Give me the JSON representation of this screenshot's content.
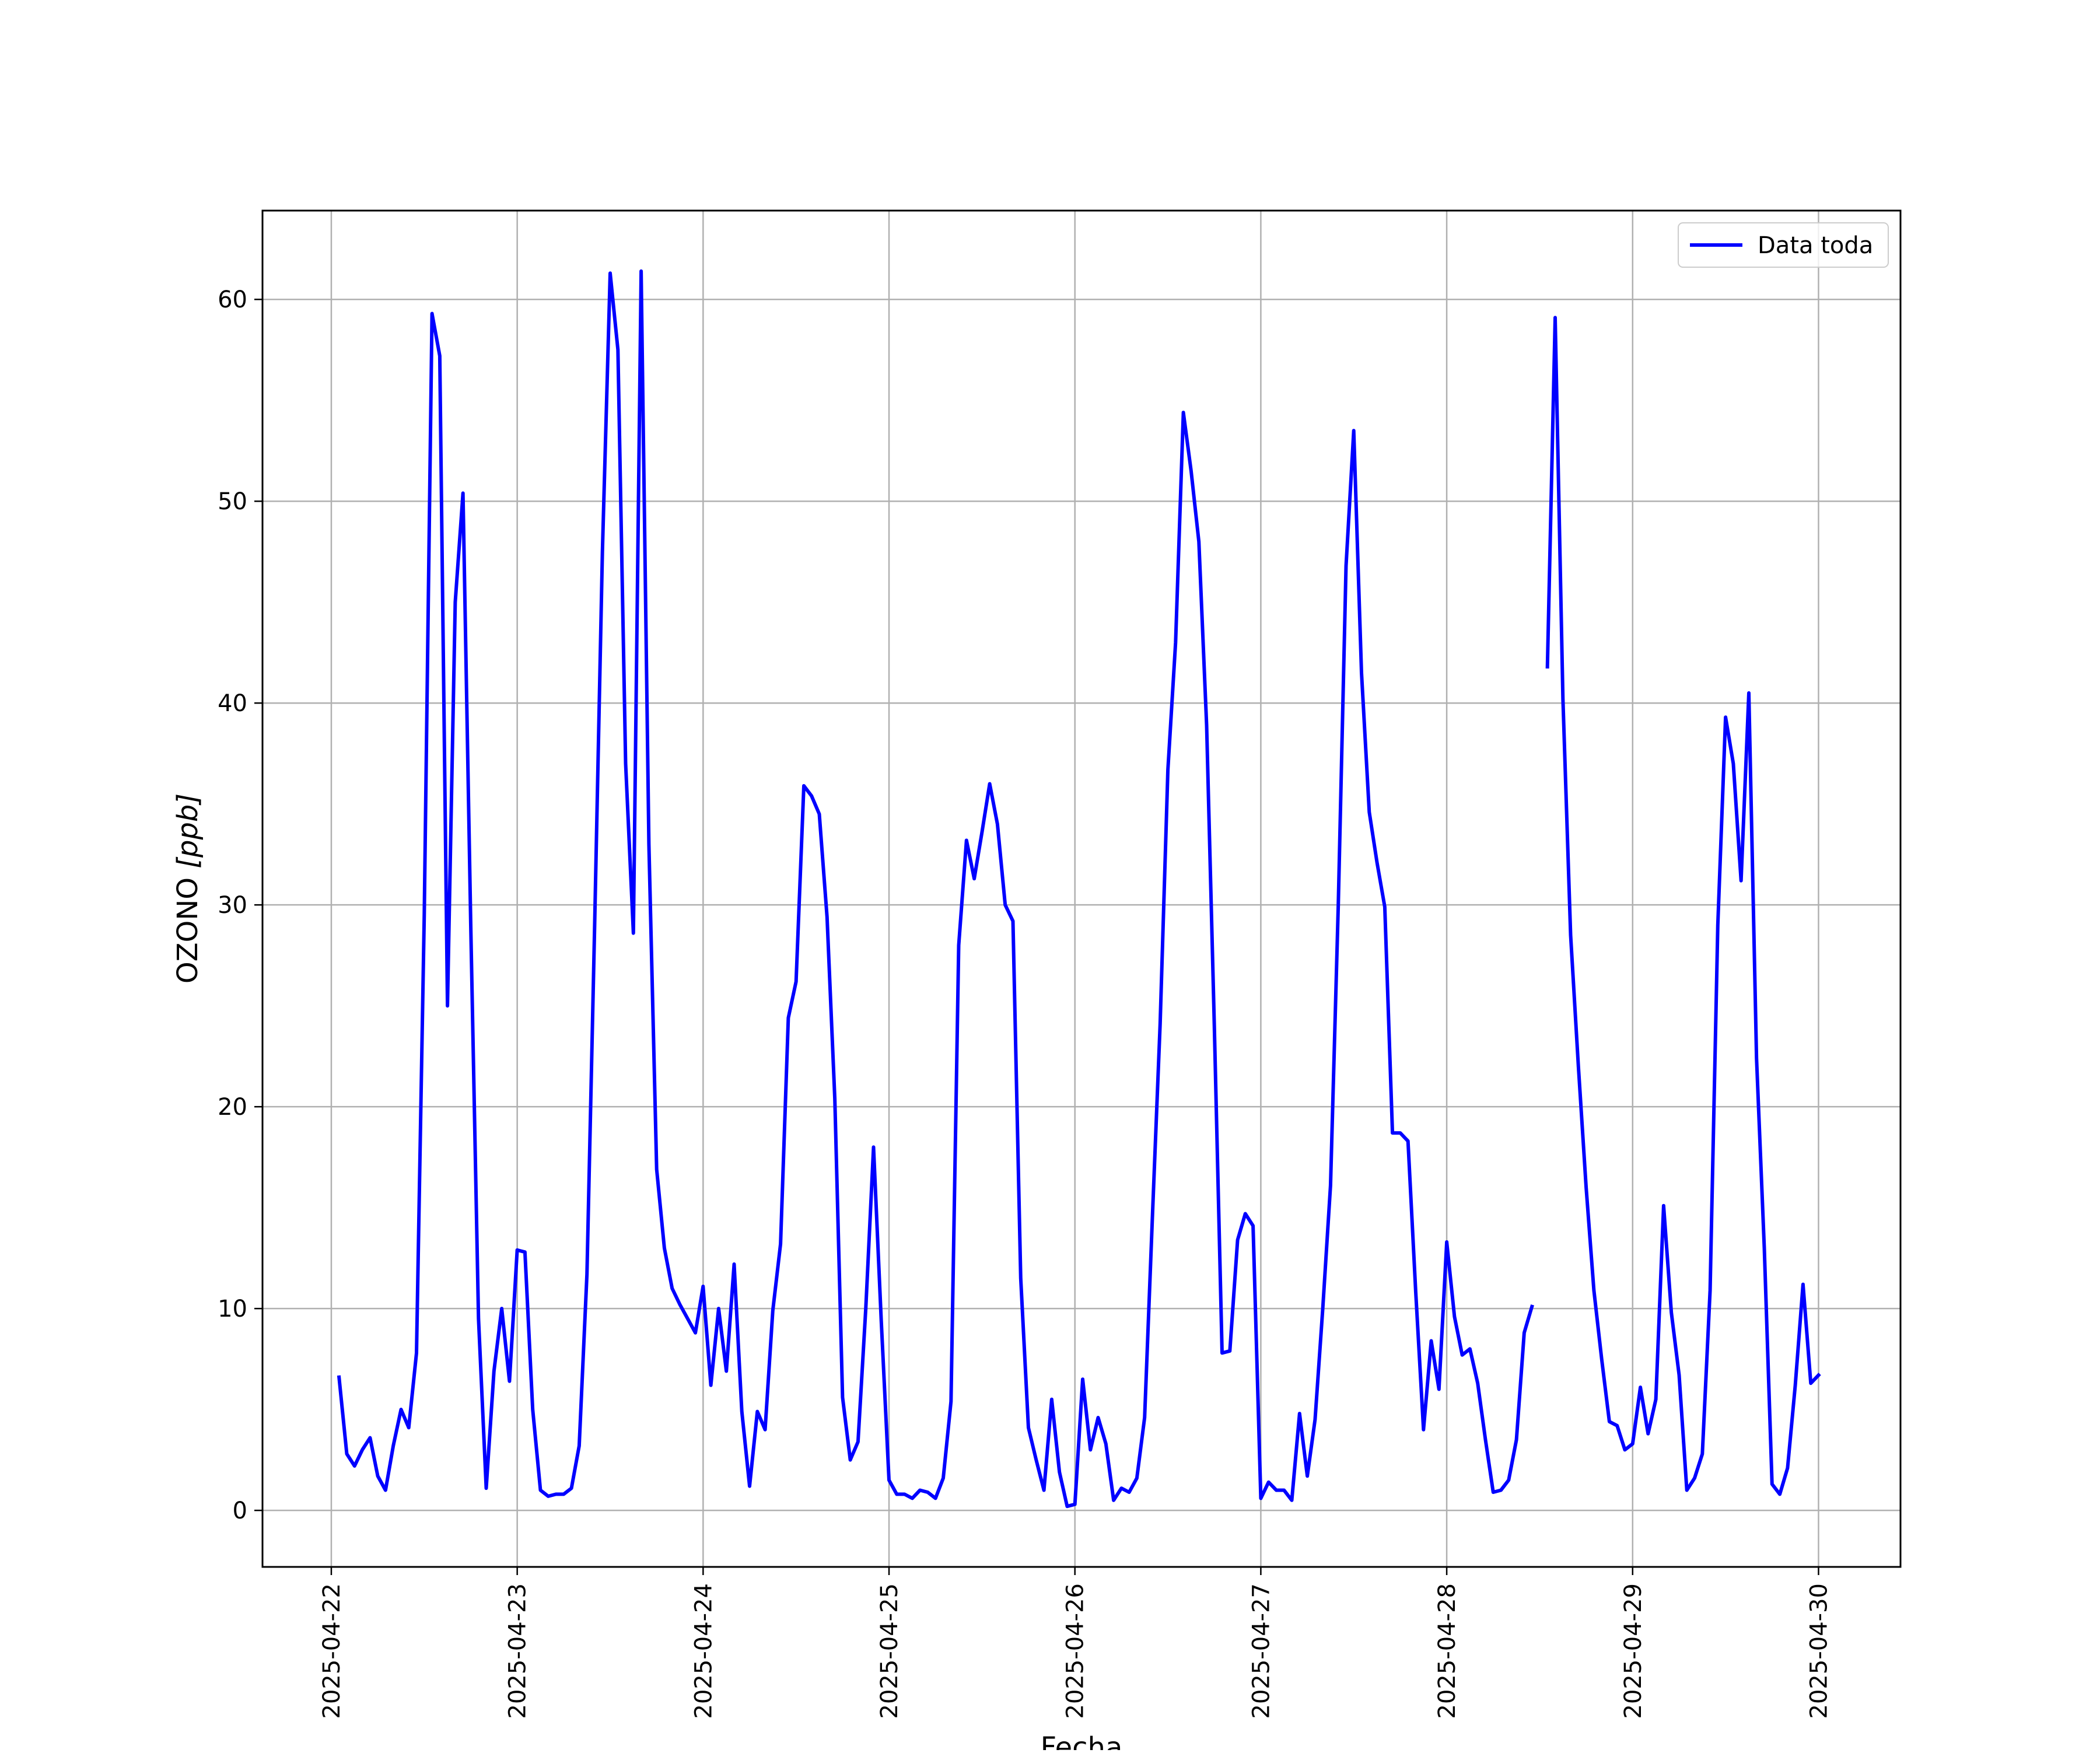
{
  "chart_data": {
    "type": "line",
    "xlabel": "Fecha",
    "ylabel": "OZONO [ppb]",
    "ylabel_main": "OZONO ",
    "ylabel_unit": "[ppb]",
    "legend": {
      "position": "top-right",
      "entries": [
        "Data toda"
      ]
    },
    "grid": true,
    "xlim": [
      "2025-04-21T15:07",
      "2025-04-30T10:35"
    ],
    "ylim": [
      -2.8,
      64.4
    ],
    "x_ticks": [
      "2025-04-22",
      "2025-04-23",
      "2025-04-24",
      "2025-04-25",
      "2025-04-26",
      "2025-04-27",
      "2025-04-28",
      "2025-04-29",
      "2025-04-30"
    ],
    "y_ticks": [
      0,
      10,
      20,
      30,
      40,
      50,
      60
    ],
    "colors": {
      "series": "#0000ff",
      "grid": "#b0b0b0",
      "frame": "#000000"
    },
    "series": [
      {
        "name": "Data toda",
        "color": "#0000ff",
        "segments": [
          {
            "start": "2025-04-22T01:00",
            "step_hours": 1,
            "values": [
              6.6,
              2.8,
              2.2,
              3.0,
              3.6,
              1.7,
              1.0,
              3.2,
              5.0,
              4.1,
              7.8,
              29.5,
              59.3,
              57.2,
              25.0,
              45.0,
              50.4,
              29.0,
              9.5,
              1.1,
              6.9,
              10.0,
              6.4,
              12.9,
              12.8,
              5.0,
              1.0,
              0.7,
              0.8,
              0.8,
              1.1,
              3.2,
              11.7,
              29.0,
              47.5,
              61.3,
              57.5,
              37.0,
              28.6,
              61.4,
              33.0,
              16.9,
              13.0,
              11.0,
              10.2,
              9.5,
              8.8,
              11.1,
              6.2,
              10.0,
              6.9,
              12.2,
              4.9,
              1.2,
              4.9,
              4.0,
              9.9,
              13.2,
              24.4,
              26.2,
              35.9,
              35.4,
              34.5,
              29.4,
              20.4,
              5.6,
              2.5,
              3.4,
              10.0,
              18.0,
              9.4,
              1.5,
              0.8,
              0.8,
              0.6,
              1.0,
              0.9,
              0.6,
              1.6,
              5.4,
              28.0,
              33.2,
              31.3,
              33.6,
              36.0,
              34.0,
              30.0,
              29.2,
              11.5,
              4.1,
              2.5,
              1.0,
              5.5,
              1.9,
              0.2,
              0.3,
              6.5,
              3.0,
              4.6,
              3.3,
              0.5,
              1.1,
              0.9,
              1.6,
              4.6,
              14.5,
              24.1,
              36.7,
              43.0,
              54.4,
              51.5,
              48.0,
              38.9,
              24.0,
              7.8,
              7.9,
              13.4,
              14.7,
              14.1,
              0.6,
              1.4,
              1.0,
              1.0,
              0.5,
              4.8,
              1.7,
              4.5,
              10.0,
              16.1,
              30.0,
              46.8,
              53.5,
              41.5,
              34.6,
              32.1,
              29.9,
              18.7,
              18.7,
              18.3,
              10.8,
              4.0,
              8.4,
              6.0,
              13.3,
              9.6,
              7.7,
              8.0,
              6.3,
              3.5,
              0.9,
              1.0,
              1.5,
              3.5,
              8.8,
              10.1
            ]
          },
          {
            "start": "2025-04-28T13:00",
            "step_hours": 1,
            "values": [
              41.8,
              59.1,
              40.2,
              28.5,
              22.0,
              16.0,
              10.9,
              7.5,
              4.4,
              4.2,
              3.0,
              3.3,
              6.1,
              3.8,
              5.5,
              15.1,
              9.8,
              6.7,
              1.0,
              1.6,
              2.8,
              10.9,
              29.0,
              39.3,
              37.0,
              31.2,
              40.5,
              22.4,
              13.0,
              1.3,
              0.8,
              2.1,
              6.2,
              11.2,
              6.3,
              6.7
            ]
          }
        ]
      }
    ]
  }
}
